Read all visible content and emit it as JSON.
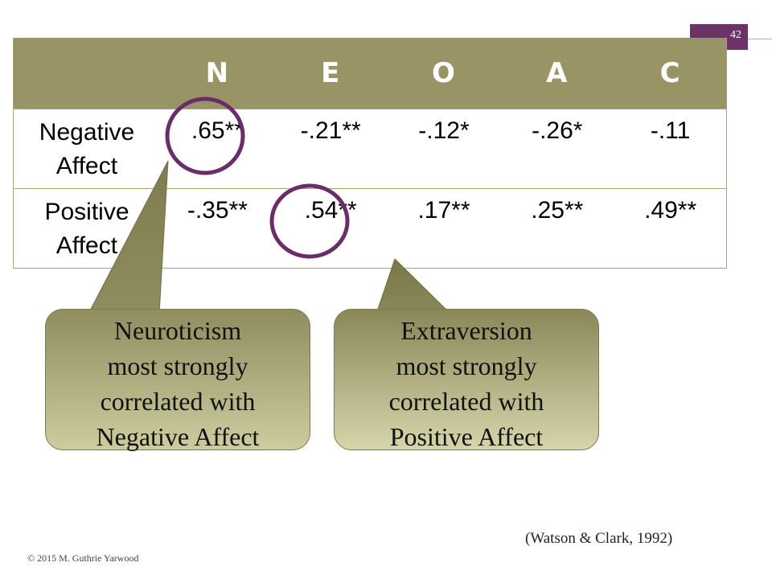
{
  "slide": {
    "page_number": "42",
    "accent_color": "#6b3368",
    "header_color": "#989466"
  },
  "table": {
    "columns": [
      "N",
      "E",
      "O",
      "A",
      "C"
    ],
    "rows": [
      {
        "label_lines": [
          "Negative",
          "Affect"
        ],
        "values": [
          ".65**",
          "-.21**",
          "-.12*",
          "-.26*",
          "-.11"
        ]
      },
      {
        "label_lines": [
          "Positive",
          "Affect"
        ],
        "values": [
          "-.35**",
          ".54**",
          ".17**",
          ".25**",
          ".49**"
        ]
      }
    ]
  },
  "callouts": [
    {
      "lines": [
        "Neuroticism",
        "most strongly",
        "correlated with",
        "Negative Affect"
      ]
    },
    {
      "lines": [
        "Extraversion",
        "most strongly",
        "correlated with",
        "Positive Affect"
      ]
    }
  ],
  "highlight_color": "#6b2d6a",
  "citation": "(Watson & Clark, 1992)",
  "copyright": "© 2015 M. Guthrie Yarwood"
}
